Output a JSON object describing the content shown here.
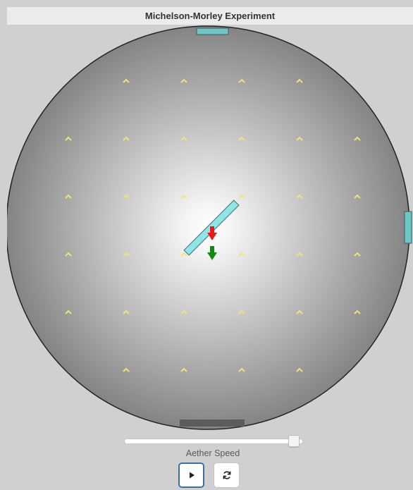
{
  "window": {
    "title": "Michelson-Morley Experiment"
  },
  "controls": {
    "slider_label": "Aether Speed",
    "aether_speed_fraction": 0.98,
    "play_icon": "play-icon",
    "reset_icon": "refresh-icon"
  },
  "scene": {
    "aether_marker_icon": "chevron-up-icon",
    "aether_marker_color": "#f2e27a",
    "mirror_color": "#6fd6d6",
    "beam_red": "#e81919",
    "beam_green": "#108a10",
    "disc_edge_color": "#222222"
  }
}
